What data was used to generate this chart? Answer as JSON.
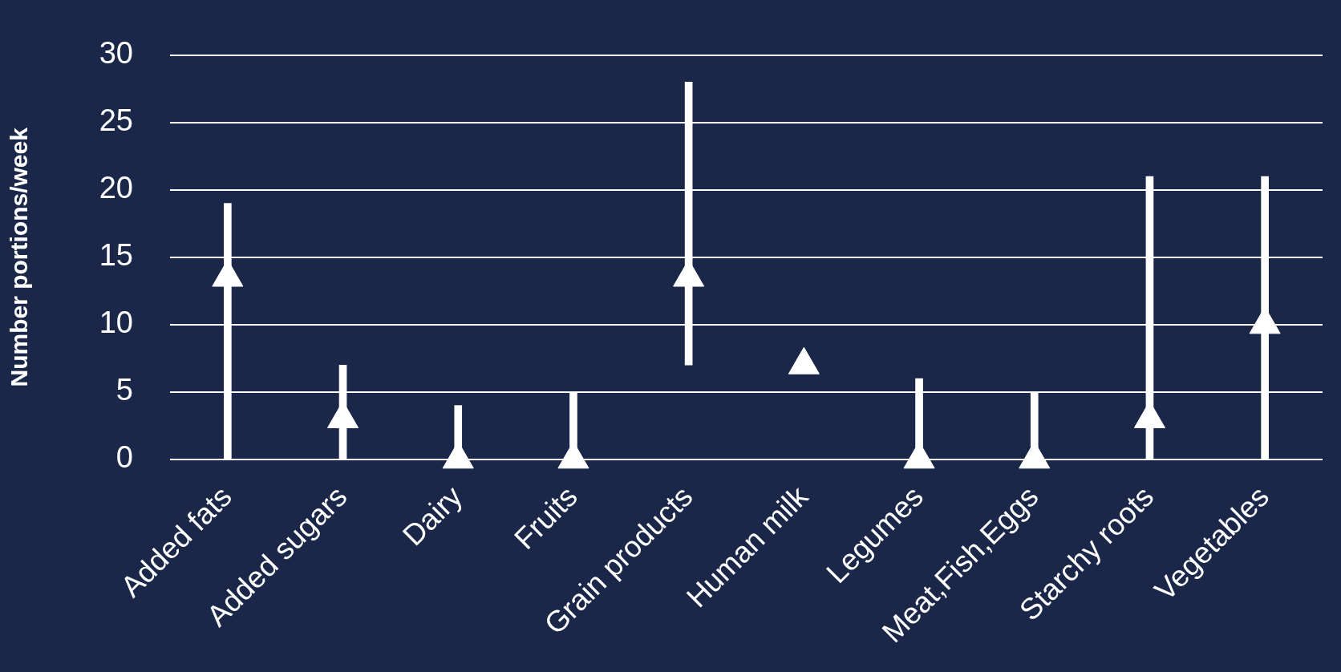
{
  "chart_data": {
    "type": "bar",
    "ylabel": "Number portions/week",
    "categories": [
      "Added fats",
      "Added sugars",
      "Dairy",
      "Fruits",
      "Grain products",
      "Human milk",
      "Legumes",
      "Meat,Fish,Eggs",
      "Starchy roots",
      "Vegetables"
    ],
    "series": [
      {
        "color": "#ffffff",
        "base": [
          0,
          0,
          0,
          0,
          7,
          null,
          0,
          0,
          0,
          0
        ],
        "values": [
          19,
          7,
          4,
          5,
          21,
          null,
          6,
          5,
          21,
          21
        ]
      },
      {
        "type": "scatter",
        "color": "#ffffff",
        "marker": "triangle",
        "x": [
          "Added fats",
          "Added sugars",
          "Dairy",
          "Fruits",
          "Grain products",
          "Human milk",
          "Legumes",
          "Meat,Fish,Eggs",
          "Starchy roots",
          "Vegetables"
        ],
        "values": [
          13.5,
          3,
          0,
          0,
          13.5,
          7,
          0,
          0,
          3,
          10
        ]
      }
    ],
    "ylim": [
      0,
      30
    ],
    "yticks": [
      0,
      5,
      10,
      15,
      20,
      25,
      30
    ],
    "grid": "y",
    "legend": false
  }
}
